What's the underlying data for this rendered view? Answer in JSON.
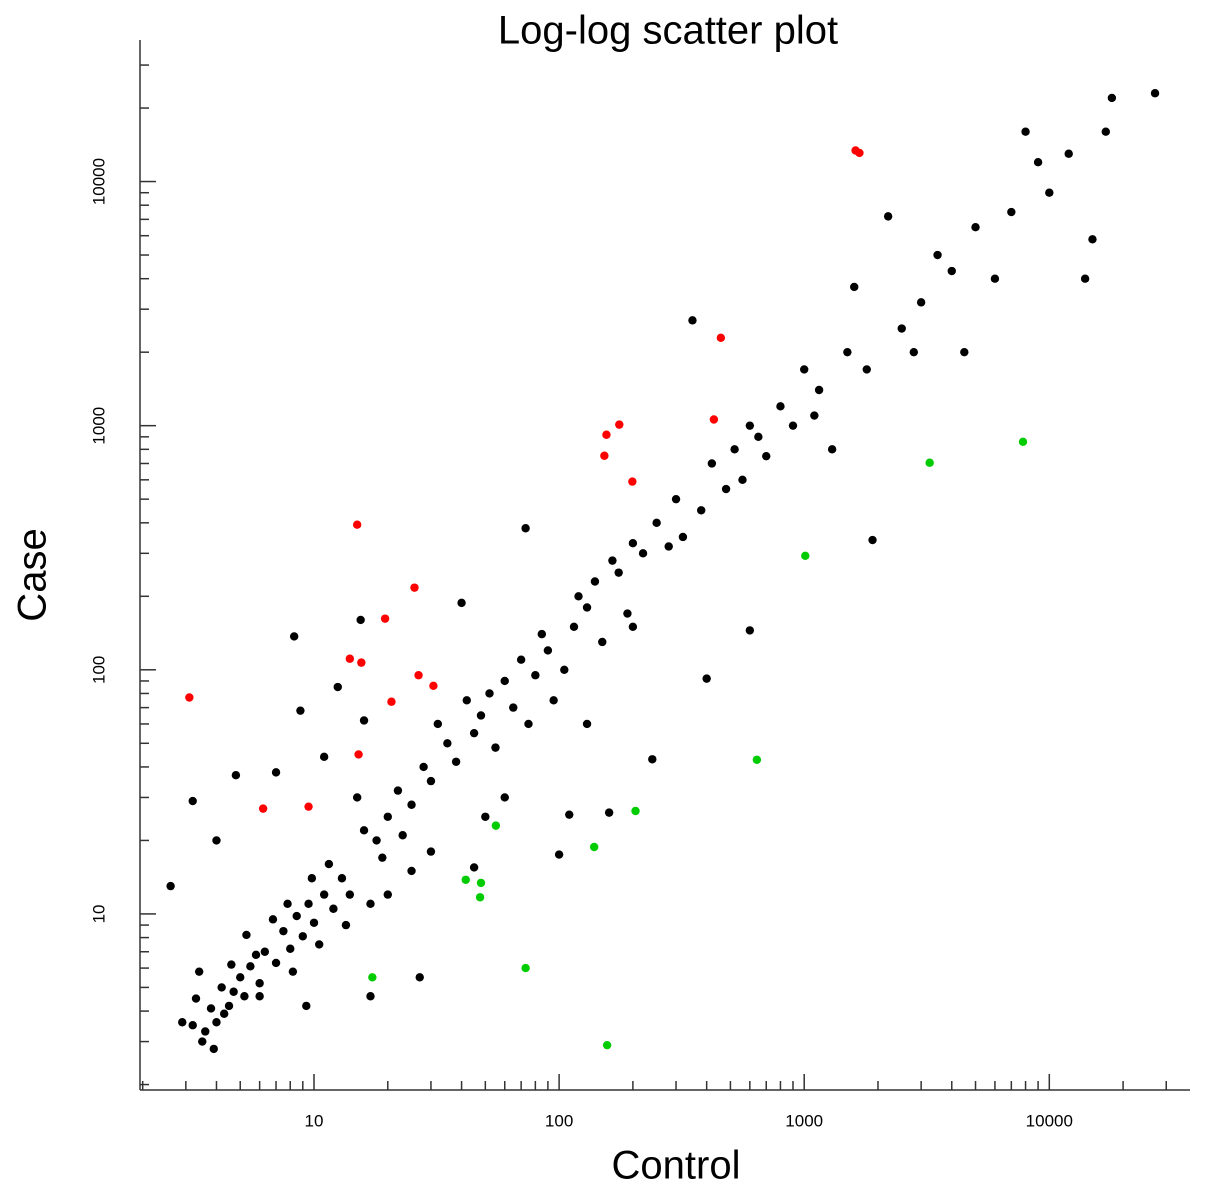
{
  "chart_data": {
    "type": "scatter",
    "title": "Log-log scatter plot",
    "x_label": "Control",
    "y_label": "Case",
    "log_x": true,
    "log_y": true,
    "xlim": [
      1.95,
      37500
    ],
    "ylim": [
      1.9,
      38000
    ],
    "xticks": [
      10,
      100,
      1000,
      10000
    ],
    "yticks": [
      10,
      100,
      1000,
      10000
    ],
    "x_minor_ticks": [
      2,
      3,
      4,
      5,
      6,
      7,
      8,
      9,
      20,
      30,
      40,
      50,
      60,
      70,
      80,
      90,
      200,
      300,
      400,
      500,
      600,
      700,
      800,
      900,
      2000,
      3000,
      4000,
      5000,
      6000,
      7000,
      8000,
      9000,
      20000,
      30000
    ],
    "y_minor_ticks": [
      2,
      3,
      4,
      5,
      6,
      7,
      8,
      9,
      20,
      30,
      40,
      50,
      60,
      70,
      80,
      90,
      200,
      300,
      400,
      500,
      600,
      700,
      800,
      900,
      2000,
      3000,
      4000,
      5000,
      6000,
      7000,
      8000,
      9000,
      20000,
      30000
    ],
    "series": [
      {
        "color": "#000000",
        "x": [
          3.2,
          3.5,
          3.8,
          4.0,
          4.2,
          3.3,
          4.5,
          5.0,
          5.2,
          5.5,
          6.0,
          6.3,
          7.0,
          7.5,
          8.0,
          8.5,
          9.0,
          9.5,
          10,
          11,
          12,
          13,
          14,
          2.6,
          3.2,
          4.0,
          4.8,
          7,
          8.3,
          8.8,
          12.5,
          15.5,
          16,
          17,
          27,
          9.3,
          6,
          11,
          15,
          18,
          20,
          22,
          25,
          28,
          30,
          32,
          35,
          38,
          40,
          42,
          45,
          48,
          52,
          55,
          60,
          65,
          70,
          75,
          73,
          80,
          85,
          90,
          95,
          100,
          105,
          110,
          115,
          120,
          130,
          140,
          150,
          160,
          165,
          175,
          190,
          200,
          220,
          240,
          250,
          280,
          300,
          320,
          350,
          380,
          400,
          420,
          480,
          520,
          560,
          600,
          650,
          700,
          800,
          900,
          1000,
          1150,
          1300,
          1500,
          1600,
          1800,
          1900,
          2200,
          2500,
          3000,
          3500,
          4000,
          4500,
          5000,
          6000,
          7000,
          8000,
          9000,
          10000,
          12000,
          14000,
          15000,
          17000,
          18000,
          27000,
          1100,
          2800,
          600,
          200,
          130,
          60,
          25,
          20,
          30,
          50,
          45,
          3.6,
          3.9,
          4.3,
          4.7,
          5.8,
          6.8,
          7.8,
          8.2,
          9.8,
          10.5,
          11.5,
          13.5,
          16,
          19,
          23,
          17,
          5.3,
          4.6,
          3.4,
          2.9
        ],
        "values": [
          3.5,
          3.0,
          4.1,
          3.6,
          5.0,
          4.5,
          4.2,
          5.5,
          4.6,
          6.1,
          5.2,
          7.0,
          6.3,
          8.5,
          7.2,
          9.8,
          8.1,
          11,
          9.2,
          12,
          10.5,
          14,
          12,
          13,
          29,
          20,
          37,
          38,
          137,
          68,
          85,
          160,
          62,
          4.6,
          5.5,
          4.2,
          4.6,
          44,
          30,
          20,
          25,
          32,
          28,
          40,
          35,
          60,
          50,
          42,
          188,
          75,
          55,
          65,
          80,
          48,
          90,
          70,
          110,
          60,
          380,
          95,
          140,
          120,
          75,
          17.5,
          100,
          25.5,
          150,
          200,
          180,
          230,
          130,
          26,
          280,
          250,
          170,
          330,
          300,
          43,
          400,
          320,
          500,
          350,
          2700,
          450,
          92,
          700,
          550,
          800,
          600,
          145,
          900,
          750,
          1200,
          1000,
          1700,
          1400,
          800,
          2000,
          3700,
          1700,
          340,
          7200,
          2500,
          3200,
          5000,
          4300,
          2000,
          6500,
          4000,
          7500,
          16000,
          12000,
          9000,
          13000,
          4000,
          5800,
          16000,
          22000,
          23000,
          1100,
          2000,
          1000,
          150,
          60,
          30,
          15,
          12,
          18,
          25,
          15.5,
          3.3,
          2.8,
          3.9,
          4.8,
          6.8,
          9.5,
          11,
          5.8,
          14,
          7.5,
          16,
          9,
          22,
          17,
          21,
          11,
          8.2,
          6.2,
          5.8,
          3.6
        ]
      },
      {
        "color": "#ff0000",
        "x": [
          3.1,
          6.2,
          9.5,
          15,
          14,
          15.6,
          15.2,
          19.5,
          20.7,
          25.7,
          26.7,
          30.7,
          153,
          156,
          176,
          199,
          428,
          457,
          1620,
          1680
        ],
        "values": [
          77,
          27,
          27.5,
          393,
          111,
          107,
          45,
          162,
          74,
          217,
          95,
          86,
          753,
          918,
          1010,
          590,
          1060,
          2290,
          13400,
          13100
        ]
      },
      {
        "color": "#00cc00",
        "x": [
          17.3,
          41.6,
          48,
          47.6,
          55.2,
          73,
          139,
          157,
          205,
          641,
          1010,
          3250,
          7810
        ],
        "values": [
          5.5,
          13.8,
          13.4,
          11.7,
          23,
          6.0,
          18.8,
          2.9,
          26.4,
          42.8,
          293,
          705,
          859
        ]
      }
    ]
  }
}
